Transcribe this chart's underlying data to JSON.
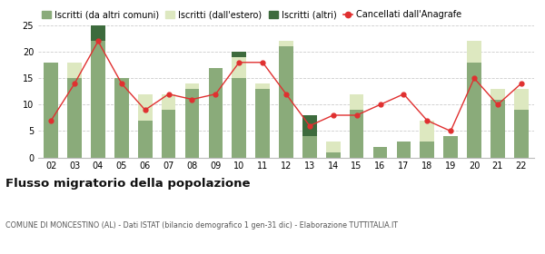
{
  "years": [
    "02",
    "03",
    "04",
    "05",
    "06",
    "07",
    "08",
    "09",
    "10",
    "11",
    "12",
    "13",
    "14",
    "15",
    "16",
    "17",
    "18",
    "19",
    "20",
    "21",
    "22"
  ],
  "iscritti_altri_comuni": [
    18,
    15,
    22,
    15,
    7,
    9,
    13,
    17,
    15,
    13,
    21,
    4,
    1,
    9,
    2,
    3,
    3,
    4,
    18,
    11,
    9
  ],
  "iscritti_estero": [
    0,
    3,
    0,
    0,
    5,
    3,
    1,
    0,
    4,
    1,
    1,
    0,
    2,
    3,
    0,
    0,
    4,
    0,
    4,
    2,
    4
  ],
  "iscritti_altri": [
    0,
    0,
    3,
    0,
    0,
    0,
    0,
    0,
    1,
    0,
    0,
    4,
    0,
    0,
    0,
    0,
    0,
    0,
    0,
    0,
    0
  ],
  "cancellati": [
    7,
    14,
    22,
    14,
    9,
    12,
    11,
    12,
    18,
    18,
    12,
    6,
    8,
    8,
    10,
    12,
    7,
    5,
    15,
    10,
    14
  ],
  "color_comuni": "#8aab7a",
  "color_estero": "#dde8c0",
  "color_altri": "#3d6b3d",
  "color_cancellati": "#e03030",
  "title": "Flusso migratorio della popolazione",
  "subtitle": "COMUNE DI MONCESTINO (AL) - Dati ISTAT (bilancio demografico 1 gen-31 dic) - Elaborazione TUTTITALIA.IT",
  "ylim": [
    0,
    25
  ],
  "yticks": [
    0,
    5,
    10,
    15,
    20,
    25
  ],
  "legend_labels": [
    "Iscritti (da altri comuni)",
    "Iscritti (dall'estero)",
    "Iscritti (altri)",
    "Cancellati dall'Anagrafe"
  ],
  "grid_color": "#cccccc",
  "bg_color": "#ffffff"
}
